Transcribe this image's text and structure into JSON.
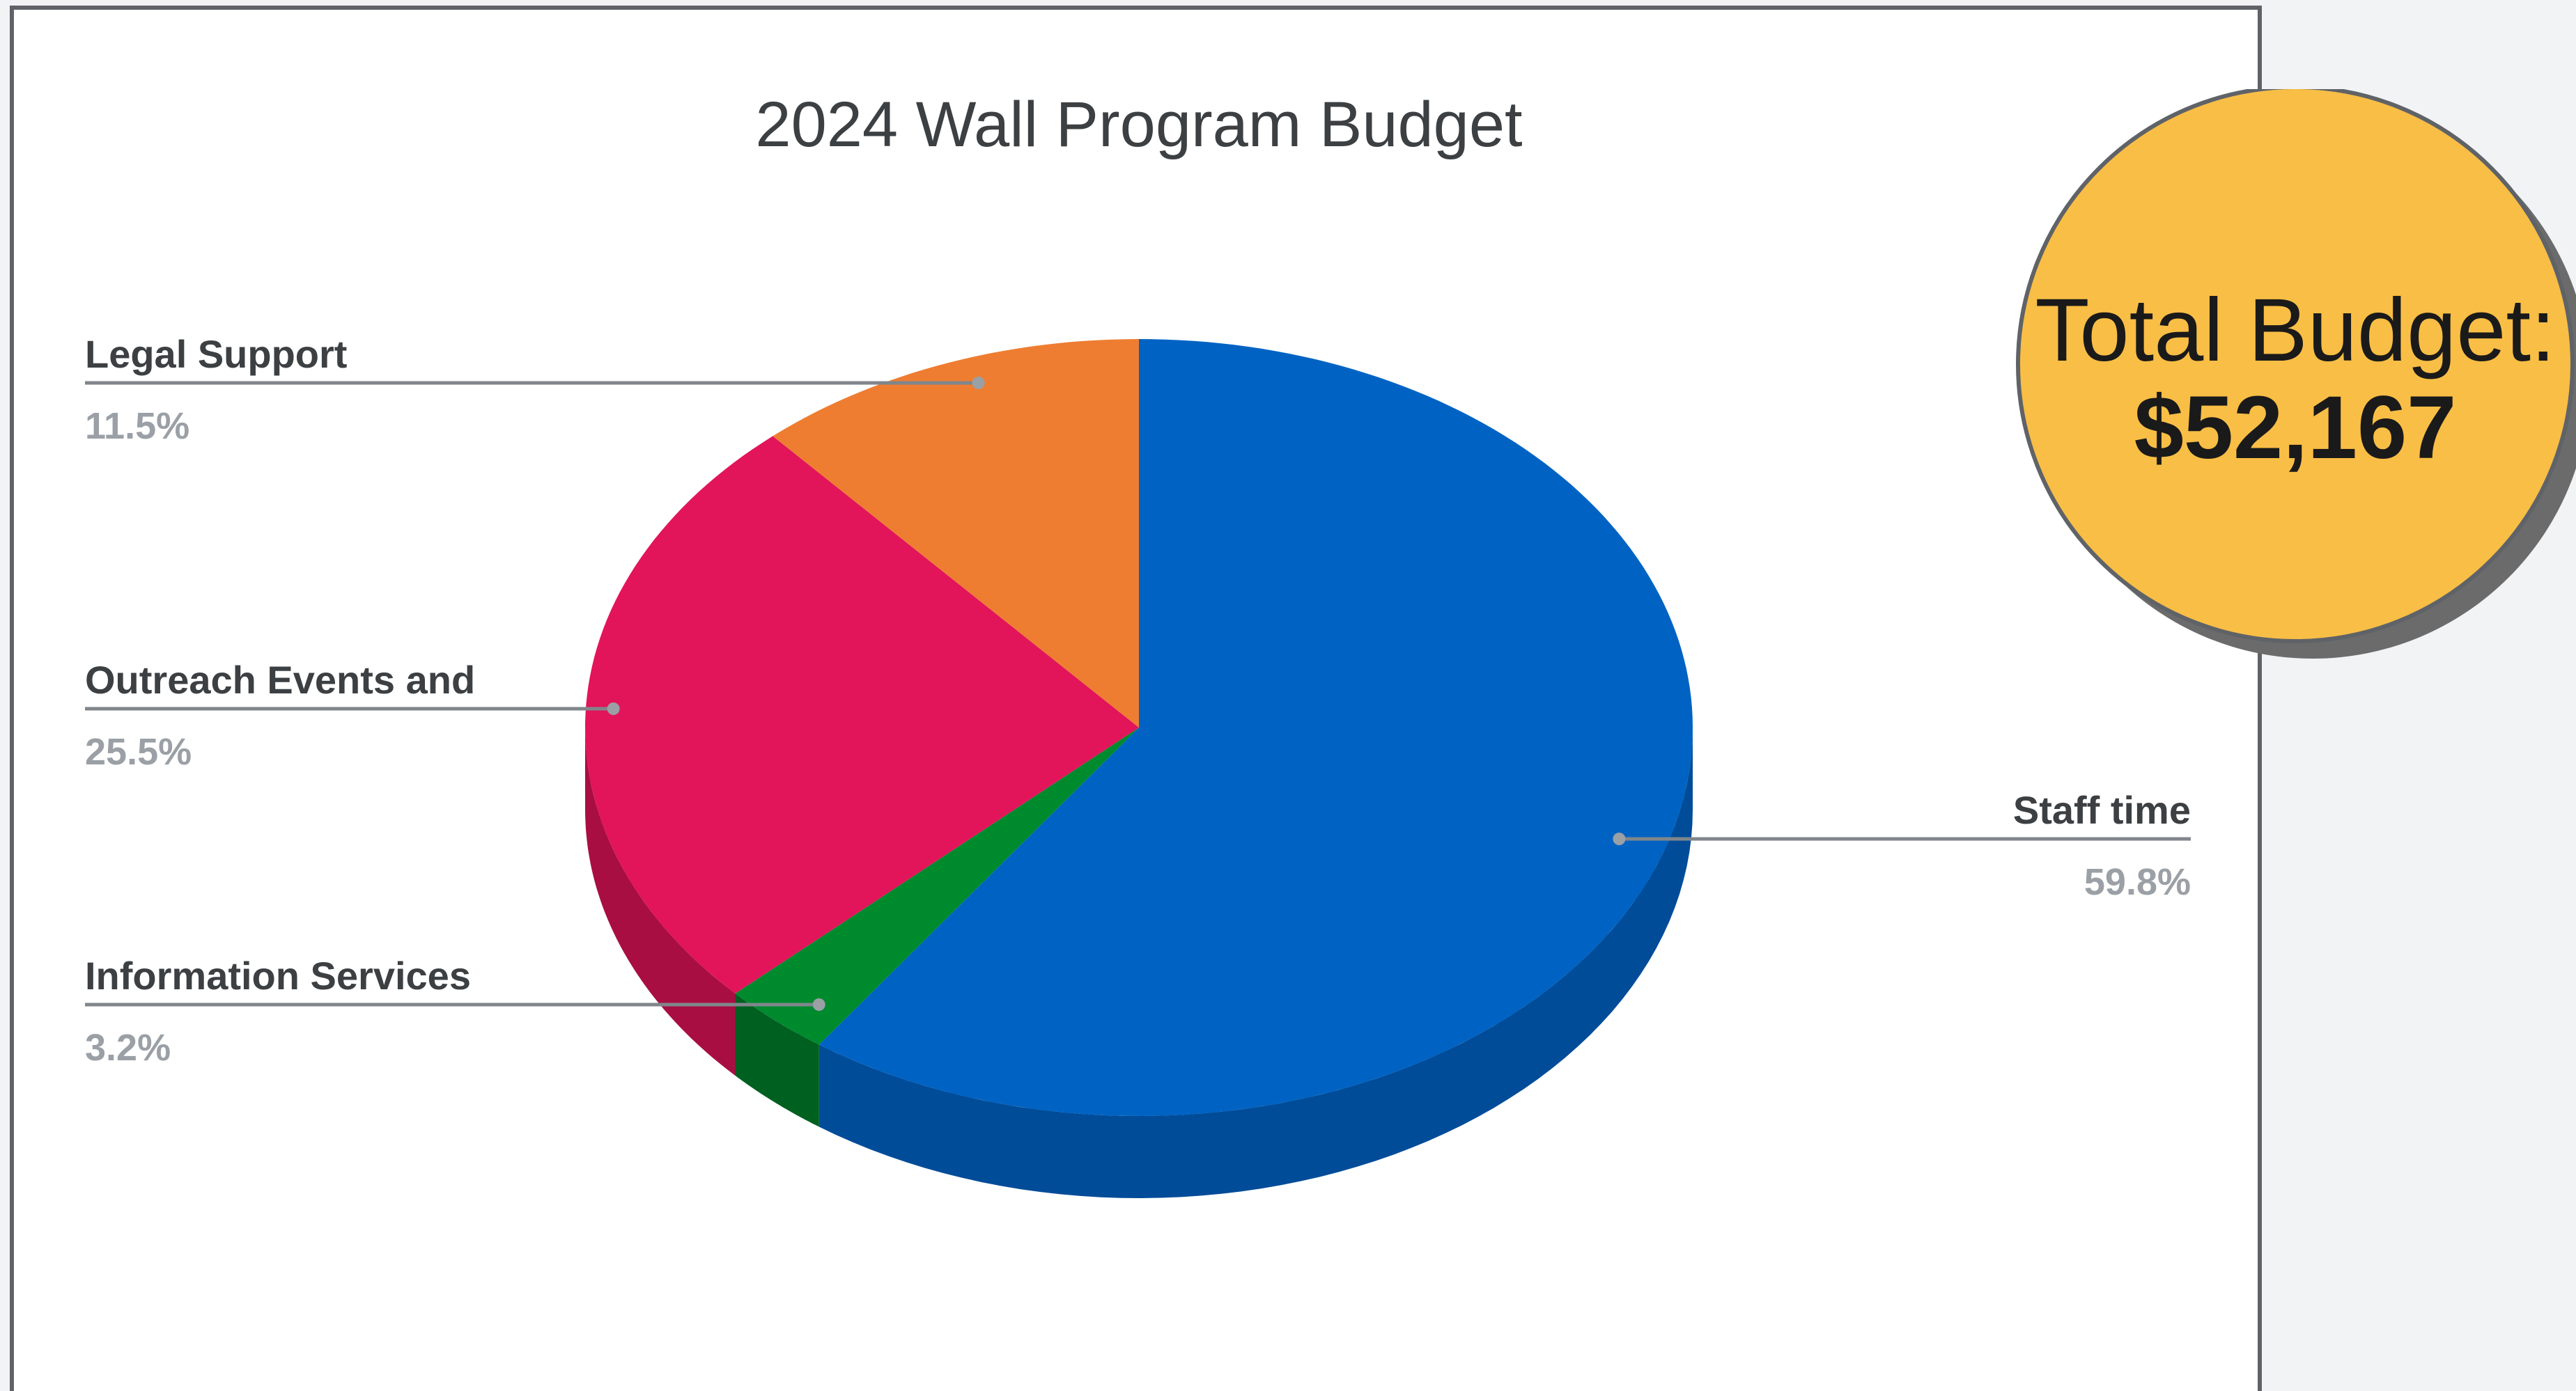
{
  "badge": {
    "label": "Total Budget:",
    "value": "$52,167",
    "fill": "#f9be45"
  },
  "chart_data": {
    "type": "pie",
    "title": "2024 Wall Program Budget",
    "is_3d": true,
    "start_angle": "12 o'clock, clockwise",
    "slices": [
      {
        "label": "Staff time",
        "value": 59.8,
        "display": "59.8%",
        "color": "#0063c3",
        "side_color": "#004c99"
      },
      {
        "label": "Information Services",
        "value": 3.2,
        "display": "3.2%",
        "color": "#008a2e",
        "side_color": "#006020"
      },
      {
        "label": "Outreach Events and",
        "value": 25.5,
        "display": "25.5%",
        "color": "#e2145a",
        "side_color": "#a80e42"
      },
      {
        "label": "Legal Support",
        "value": 11.5,
        "display": "11.5%",
        "color": "#ee7d31",
        "side_color": "#b65b1e"
      }
    ],
    "label_position": "outside with leader lines"
  }
}
